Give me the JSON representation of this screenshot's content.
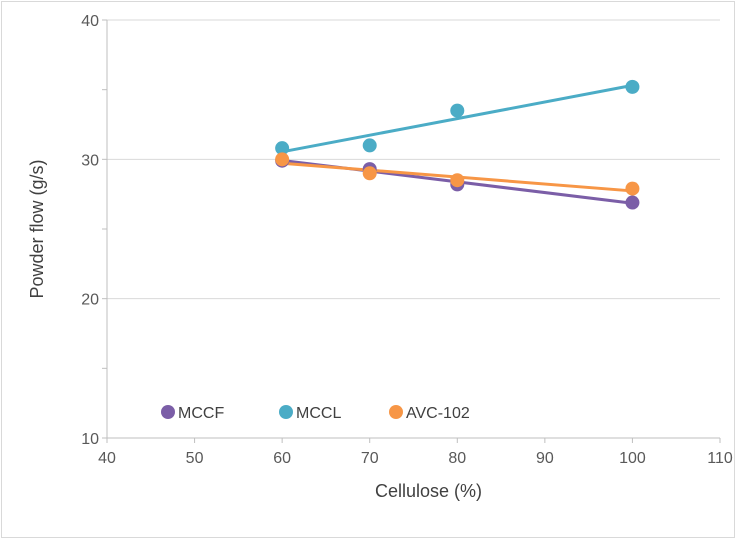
{
  "chart_data": {
    "type": "scatter",
    "title": "",
    "xlabel": "Cellulose (%)",
    "ylabel": "Powder  flow (g/s)",
    "xlim": [
      40,
      110
    ],
    "ylim": [
      10,
      40
    ],
    "xticks": [
      40,
      50,
      60,
      70,
      80,
      90,
      100,
      110
    ],
    "yticks": [
      10,
      20,
      30,
      40
    ],
    "grid": true,
    "legend": "bottom-left inside",
    "trendlines": "linear",
    "series": [
      {
        "name": "MCCF",
        "color": "#7b5ea7",
        "x": [
          60,
          70,
          80,
          100
        ],
        "y": [
          29.9,
          29.3,
          28.2,
          26.9
        ]
      },
      {
        "name": "MCCL",
        "color": "#4bacc6",
        "x": [
          60,
          70,
          80,
          100
        ],
        "y": [
          30.8,
          31.0,
          33.5,
          35.2
        ]
      },
      {
        "name": "AVC-102",
        "color": "#f79646",
        "x": [
          60,
          70,
          80,
          100
        ],
        "y": [
          30.0,
          29.0,
          28.5,
          27.9
        ]
      }
    ]
  }
}
